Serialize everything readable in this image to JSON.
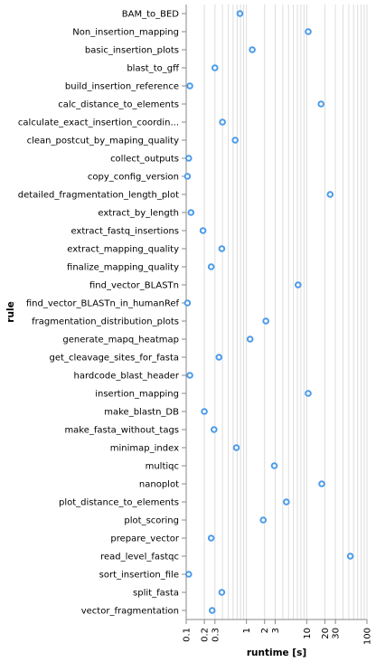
{
  "chart_data": {
    "type": "scatter",
    "xlabel": "runtime [s]",
    "ylabel": "rule",
    "x_scale": "log",
    "xlim": [
      0.1,
      100
    ],
    "grid": true,
    "x_ticks": [
      {
        "value": 0.1,
        "label": "0.1"
      },
      {
        "value": 0.2,
        "label": "0.2"
      },
      {
        "value": 0.3,
        "label": "0.3"
      },
      {
        "value": 1,
        "label": "1"
      },
      {
        "value": 2,
        "label": "2"
      },
      {
        "value": 3,
        "label": "3"
      },
      {
        "value": 10,
        "label": "10"
      },
      {
        "value": 20,
        "label": "20"
      },
      {
        "value": 30,
        "label": "30"
      },
      {
        "value": 100,
        "label": "100"
      }
    ],
    "x_grid": [
      0.1,
      0.2,
      0.3,
      0.4,
      0.5,
      0.6,
      0.7,
      0.8,
      0.9,
      1,
      2,
      3,
      4,
      5,
      6,
      7,
      8,
      9,
      10,
      20,
      30,
      40,
      50,
      60,
      70,
      80,
      90,
      100
    ],
    "points": [
      {
        "rule": "BAM_to_BED",
        "runtime": 0.78
      },
      {
        "rule": "Non_insertion_mapping",
        "runtime": 10.6
      },
      {
        "rule": "basic_insertion_plots",
        "runtime": 1.25
      },
      {
        "rule": "blast_to_gff",
        "runtime": 0.3
      },
      {
        "rule": "build_insertion_reference",
        "runtime": 0.115
      },
      {
        "rule": "calc_distance_to_elements",
        "runtime": 17.3
      },
      {
        "rule": "calculate_exact_insertion_coordin...",
        "runtime": 0.4
      },
      {
        "rule": "clean_postcut_by_maping_quality",
        "runtime": 0.65
      },
      {
        "rule": "collect_outputs",
        "runtime": 0.11
      },
      {
        "rule": "copy_config_version",
        "runtime": 0.105
      },
      {
        "rule": "detailed_fragmentation_length_plot",
        "runtime": 24.5
      },
      {
        "rule": "extract_by_length",
        "runtime": 0.12
      },
      {
        "rule": "extract_fastq_insertions",
        "runtime": 0.19
      },
      {
        "rule": "extract_mapping_quality",
        "runtime": 0.39
      },
      {
        "rule": "finalize_mapping_quality",
        "runtime": 0.26
      },
      {
        "rule": "find_vector_BLASTn",
        "runtime": 7.2
      },
      {
        "rule": "find_vector_BLASTn_in_humanRef",
        "runtime": 0.105
      },
      {
        "rule": "fragmentation_distribution_plots",
        "runtime": 2.1
      },
      {
        "rule": "generate_mapq_heatmap",
        "runtime": 1.15
      },
      {
        "rule": "get_cleavage_sites_for_fasta",
        "runtime": 0.35
      },
      {
        "rule": "hardcode_blast_header",
        "runtime": 0.115
      },
      {
        "rule": "insertion_mapping",
        "runtime": 10.6
      },
      {
        "rule": "make_blastn_DB",
        "runtime": 0.2
      },
      {
        "rule": "make_fasta_without_tags",
        "runtime": 0.29
      },
      {
        "rule": "minimap_index",
        "runtime": 0.68
      },
      {
        "rule": "multiqc",
        "runtime": 2.9
      },
      {
        "rule": "nanoplot",
        "runtime": 17.8
      },
      {
        "rule": "plot_distance_to_elements",
        "runtime": 4.6
      },
      {
        "rule": "plot_scoring",
        "runtime": 1.9
      },
      {
        "rule": "prepare_vector",
        "runtime": 0.26
      },
      {
        "rule": "read_level_fastqc",
        "runtime": 53
      },
      {
        "rule": "sort_insertion_file",
        "runtime": 0.11
      },
      {
        "rule": "split_fasta",
        "runtime": 0.39
      },
      {
        "rule": "vector_fragmentation",
        "runtime": 0.27
      }
    ]
  }
}
